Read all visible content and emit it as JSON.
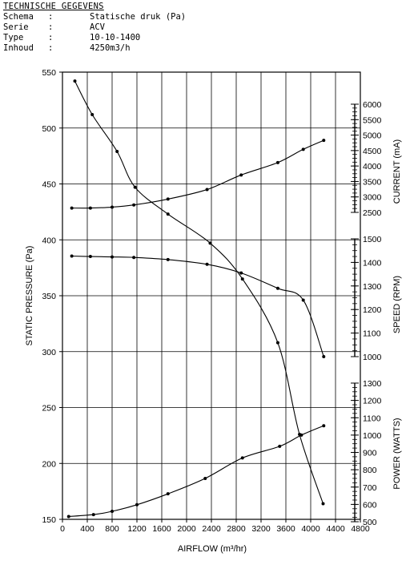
{
  "header": {
    "title": "TECHNISCHE GEGEVENS",
    "rows": [
      {
        "key": "Schema",
        "sep": ":",
        "value": "Statische druk (Pa)"
      },
      {
        "key": "Serie",
        "sep": ":",
        "value": "ACV"
      },
      {
        "key": "Type",
        "sep": ":",
        "value": "10-10-1400"
      },
      {
        "key": "Inhoud",
        "sep": ":",
        "value": "4250m3/h"
      }
    ]
  },
  "chart_data": {
    "type": "line",
    "title": "",
    "xlabel": "AIRFLOW (m³/hr)",
    "ylabel": "STATIC PRESSURE (Pa)",
    "xlim": [
      0,
      4800
    ],
    "ylim": [
      150,
      550
    ],
    "x_ticks": [
      0,
      400,
      800,
      1200,
      1600,
      2000,
      2400,
      2800,
      3200,
      3600,
      4000,
      4400,
      4800
    ],
    "y_ticks": [
      150,
      200,
      250,
      300,
      350,
      400,
      450,
      500,
      550
    ],
    "grid": true,
    "right_axes": [
      {
        "label": "CURRENT (mA)",
        "min": 2500,
        "max": 6000,
        "ticks": [
          2500,
          3000,
          3500,
          4000,
          4500,
          5000,
          5500,
          6000
        ]
      },
      {
        "label": "SPEED (RPM)",
        "min": 1000,
        "max": 1500,
        "ticks": [
          1000,
          1100,
          1200,
          1300,
          1400,
          1500
        ]
      },
      {
        "label": "POWER (WATTS)",
        "min": 500,
        "max": 1300,
        "ticks": [
          500,
          600,
          700,
          800,
          900,
          1000,
          1100,
          1200,
          1300
        ]
      }
    ],
    "series": [
      {
        "axis": "left",
        "points": [
          [
            200,
            542
          ],
          [
            480,
            512
          ],
          [
            880,
            479
          ],
          [
            1170,
            447
          ],
          [
            1700,
            423
          ],
          [
            2380,
            397
          ],
          [
            2900,
            365
          ],
          [
            3470,
            308
          ],
          [
            3820,
            226
          ],
          [
            4200,
            164
          ]
        ]
      },
      {
        "axis": "current",
        "points": [
          [
            150,
            2640
          ],
          [
            450,
            2640
          ],
          [
            800,
            2670
          ],
          [
            1150,
            2740
          ],
          [
            1700,
            2930
          ],
          [
            2330,
            3240
          ],
          [
            2880,
            3710
          ],
          [
            3470,
            4110
          ],
          [
            3880,
            4540
          ],
          [
            4210,
            4830
          ]
        ]
      },
      {
        "axis": "speed",
        "points": [
          [
            150,
            1427
          ],
          [
            450,
            1425
          ],
          [
            800,
            1423
          ],
          [
            1150,
            1421
          ],
          [
            1700,
            1412
          ],
          [
            2330,
            1392
          ],
          [
            2880,
            1355
          ],
          [
            3470,
            1290
          ],
          [
            3880,
            1240
          ],
          [
            4210,
            1000
          ]
        ]
      },
      {
        "axis": "power",
        "points": [
          [
            100,
            530
          ],
          [
            500,
            541
          ],
          [
            800,
            560
          ],
          [
            1200,
            598
          ],
          [
            1700,
            661
          ],
          [
            2300,
            750
          ],
          [
            2900,
            868
          ],
          [
            3500,
            935
          ],
          [
            3850,
            1000
          ],
          [
            4210,
            1054
          ]
        ]
      }
    ]
  }
}
